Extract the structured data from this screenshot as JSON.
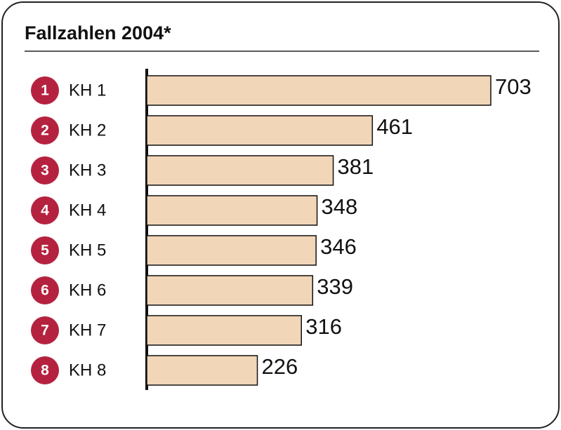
{
  "chart_data": {
    "type": "bar",
    "orientation": "horizontal",
    "title": "Fallzahlen 2004*",
    "ranks": [
      1,
      2,
      3,
      4,
      5,
      6,
      7,
      8
    ],
    "categories": [
      "KH 1",
      "KH 2",
      "KH 3",
      "KH 4",
      "KH 5",
      "KH 6",
      "KH 7",
      "KH 8"
    ],
    "values": [
      703,
      461,
      381,
      348,
      346,
      339,
      316,
      226
    ],
    "color": "#f2d6b8",
    "badge_color": "#b5223f"
  }
}
